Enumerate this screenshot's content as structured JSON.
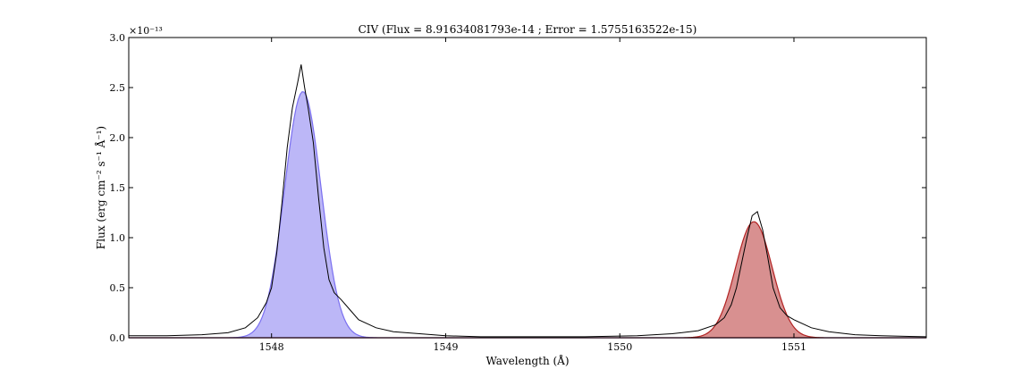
{
  "chart_data": {
    "type": "line",
    "title": "CIV (Flux = 8.91634081793e-14 ; Error = 1.5755163522e-15)",
    "xlabel": "Wavelength (Å)",
    "ylabel": "Flux (erg cm⁻² s⁻¹ Å⁻¹)",
    "y_offset_label": "×10⁻¹³",
    "xlim": [
      1547.18,
      1551.76
    ],
    "ylim": [
      0.0,
      3.0
    ],
    "x_ticks": [
      1548,
      1549,
      1550,
      1551
    ],
    "x_tick_labels": [
      "1548",
      "1549",
      "1550",
      "1551"
    ],
    "y_ticks": [
      0.0,
      0.5,
      1.0,
      1.5,
      2.0,
      2.5,
      3.0
    ],
    "y_tick_labels": [
      "0.0",
      "0.5",
      "1.0",
      "1.5",
      "2.0",
      "2.5",
      "3.0"
    ],
    "grid": false,
    "series": [
      {
        "kind": "filled-gaussian",
        "color": "#7a6ff0",
        "fill_opacity": 0.5,
        "center": 1548.18,
        "amplitude": 2.46,
        "sigma": 0.105
      },
      {
        "kind": "filled-gaussian",
        "color": "#b22222",
        "fill_opacity": 0.5,
        "center": 1550.77,
        "amplitude": 1.16,
        "sigma": 0.105
      },
      {
        "kind": "line",
        "color": "#000000",
        "x": [
          1547.18,
          1547.4,
          1547.6,
          1547.75,
          1547.85,
          1547.92,
          1547.97,
          1548.0,
          1548.03,
          1548.06,
          1548.09,
          1548.12,
          1548.15,
          1548.17,
          1548.19,
          1548.21,
          1548.24,
          1548.27,
          1548.3,
          1548.33,
          1548.36,
          1548.4,
          1548.45,
          1548.5,
          1548.6,
          1548.7,
          1548.85,
          1549.0,
          1549.2,
          1549.5,
          1549.8,
          1550.1,
          1550.3,
          1550.45,
          1550.55,
          1550.6,
          1550.64,
          1550.67,
          1550.7,
          1550.73,
          1550.76,
          1550.79,
          1550.82,
          1550.85,
          1550.88,
          1550.92,
          1550.96,
          1551.0,
          1551.1,
          1551.2,
          1551.35,
          1551.5,
          1551.76
        ],
        "y": [
          0.02,
          0.02,
          0.03,
          0.05,
          0.1,
          0.2,
          0.35,
          0.5,
          0.85,
          1.35,
          1.9,
          2.3,
          2.55,
          2.73,
          2.5,
          2.3,
          1.95,
          1.4,
          0.9,
          0.58,
          0.45,
          0.38,
          0.28,
          0.18,
          0.1,
          0.06,
          0.04,
          0.02,
          0.01,
          0.01,
          0.01,
          0.02,
          0.04,
          0.07,
          0.13,
          0.2,
          0.33,
          0.5,
          0.75,
          1.0,
          1.22,
          1.26,
          1.08,
          0.8,
          0.5,
          0.3,
          0.22,
          0.18,
          0.1,
          0.06,
          0.03,
          0.02,
          0.01
        ]
      }
    ]
  }
}
